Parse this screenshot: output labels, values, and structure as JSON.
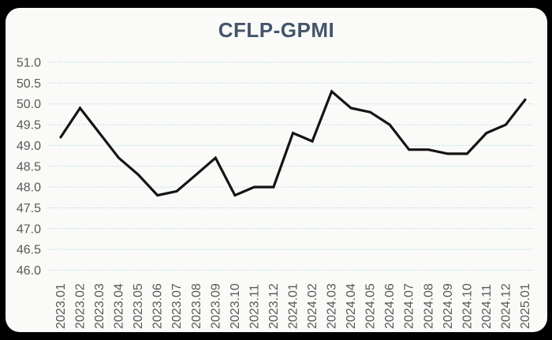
{
  "chart_data": {
    "type": "line",
    "title": "CFLP-GPMI",
    "series_name": "CFLP-GPMI",
    "categories": [
      "2023.01",
      "2023.02",
      "2023.03",
      "2023.04",
      "2023.05",
      "2023.06",
      "2023.07",
      "2023.08",
      "2023.09",
      "2023.10",
      "2023.11",
      "2023.12",
      "2024.01",
      "2024.02",
      "2024.03",
      "2024.04",
      "2024.05",
      "2024.06",
      "2024.07",
      "2024.08",
      "2024.09",
      "2024.10",
      "2024.11",
      "2024.12",
      "2025.01"
    ],
    "values": [
      49.2,
      49.9,
      49.3,
      48.7,
      48.3,
      47.8,
      47.9,
      48.3,
      48.7,
      47.8,
      48.0,
      48.0,
      49.3,
      49.1,
      50.3,
      49.9,
      49.8,
      49.5,
      48.9,
      48.9,
      48.8,
      48.8,
      49.3,
      49.5,
      50.1
    ],
    "xlabel": "",
    "ylabel": "",
    "ylim": [
      46.0,
      51.0
    ],
    "ytick_step": 0.5,
    "ytick_labels": [
      "51.0",
      "50.5",
      "50.0",
      "49.5",
      "49.0",
      "48.5",
      "48.0",
      "47.5",
      "47.0",
      "46.5",
      "46.0"
    ],
    "grid": "horizontal-dotted",
    "legend_position": "none",
    "x_label_rotation": "vertical-bottom-to-top"
  },
  "style": {
    "page_background": "#000000",
    "card_background": "#fafaf8",
    "title_color": "#44546a",
    "axis_label_color": "#595959",
    "gridline_color": "#aad8e2",
    "line_color": "#141414"
  }
}
